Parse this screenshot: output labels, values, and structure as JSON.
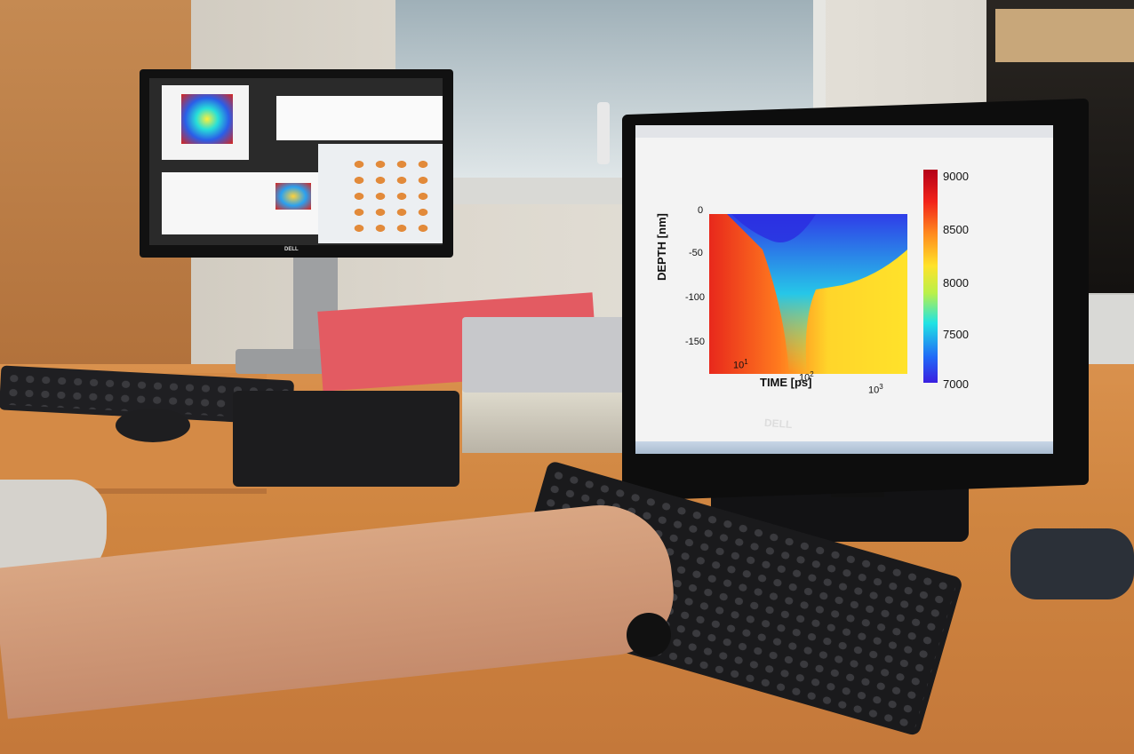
{
  "right_monitor": {
    "brand": "DELL",
    "chart": {
      "title": "",
      "xlabel": "TIME [ps]",
      "ylabel": "DEPTH [nm]",
      "y_ticks": [
        "0",
        "-50",
        "-100",
        "-150"
      ],
      "x_ticks": [
        "10",
        "10",
        "10"
      ],
      "x_tick_exponents": [
        "1",
        "2",
        "3"
      ],
      "colorbar_ticks": [
        "9000",
        "8500",
        "8000",
        "7500",
        "7000"
      ]
    }
  },
  "left_monitor": {
    "brand": "DELL"
  },
  "chart_data": {
    "type": "heatmap",
    "title": "",
    "xlabel": "TIME [ps]",
    "ylabel": "DEPTH [nm]",
    "x_scale": "log",
    "xlim": [
      10,
      1000
    ],
    "ylim": [
      -150,
      0
    ],
    "colorbar": {
      "min": 7000,
      "max": 9000,
      "ticks": [
        9000,
        8500,
        8000,
        7500,
        7000
      ]
    },
    "legend": "right"
  }
}
